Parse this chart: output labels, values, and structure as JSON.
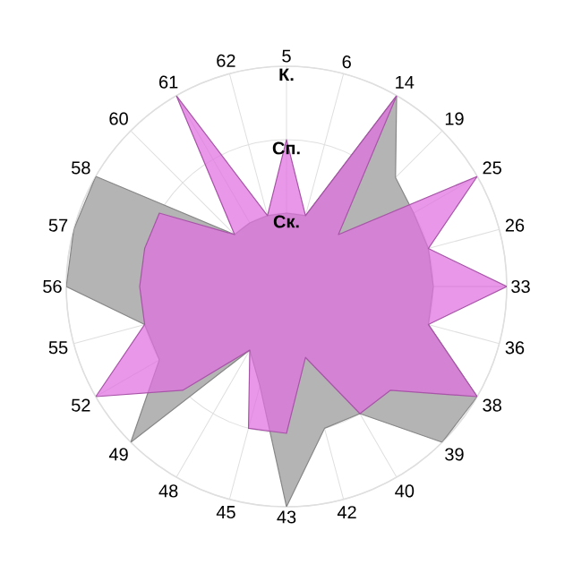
{
  "chart_data": {
    "type": "radar",
    "categories": [
      "5",
      "6",
      "14",
      "19",
      "25",
      "26",
      "33",
      "36",
      "38",
      "39",
      "40",
      "42",
      "43",
      "45",
      "48",
      "49",
      "52",
      "55",
      "56",
      "57",
      "58",
      "60",
      "61",
      "62"
    ],
    "ylim": [
      0,
      3
    ],
    "yticks": [
      {
        "value": 1,
        "label": "Ск."
      },
      {
        "value": 2,
        "label": "Сп."
      },
      {
        "value": 3,
        "label": "К."
      }
    ],
    "grid": true,
    "series": [
      {
        "color": "#b4b4b4",
        "values": [
          1.0,
          1.0,
          3.0,
          2.1,
          2.0,
          2.0,
          2.0,
          2.0,
          3.0,
          3.0,
          2.0,
          2.0,
          3.0,
          1.4,
          1.0,
          3.0,
          2.0,
          2.0,
          3.0,
          3.0,
          3.0,
          1.0,
          1.0,
          1.0
        ]
      },
      {
        "color": "#e070e0",
        "values": [
          2.0,
          1.0,
          3.0,
          1.0,
          3.0,
          2.0,
          3.0,
          2.0,
          3.0,
          2.0,
          2.0,
          1.0,
          2.0,
          2.0,
          1.0,
          2.0,
          3.0,
          2.0,
          2.0,
          2.0,
          2.0,
          1.0,
          3.0,
          1.0
        ]
      }
    ]
  }
}
